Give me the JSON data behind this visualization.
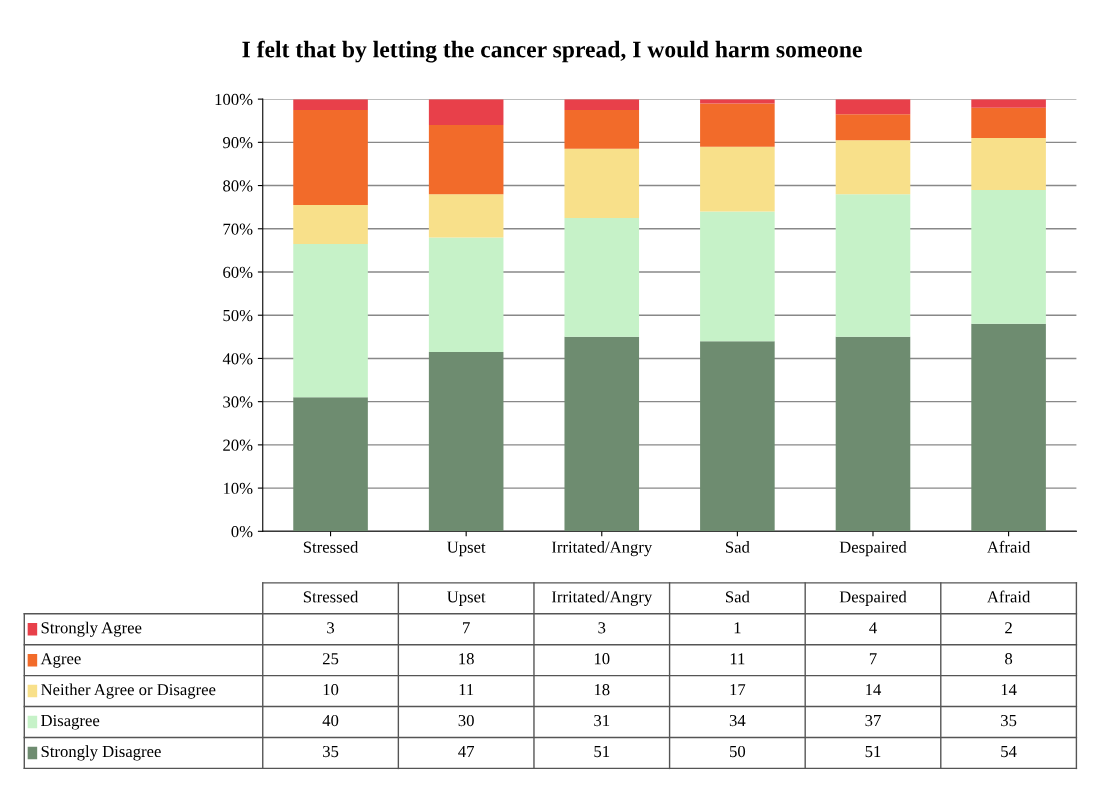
{
  "chart_data": [
    {
      "type": "bar",
      "title": "I felt that by letting the cancer spread, I would harm someone",
      "categories": [
        "Stressed",
        "Upset",
        "Irritated/Angry",
        "Sad",
        "Despaired",
        "Afraid"
      ],
      "stacked": true,
      "ylim": [
        0,
        100
      ],
      "yticks": [
        {
          "value": 0,
          "label": "0%"
        },
        {
          "value": 10,
          "label": "10%"
        },
        {
          "value": 20,
          "label": "20%"
        },
        {
          "value": 30,
          "label": "30%"
        },
        {
          "value": 40,
          "label": "40%"
        },
        {
          "value": 50,
          "label": "50%"
        },
        {
          "value": 60,
          "label": "60%"
        },
        {
          "value": 70,
          "label": "70%"
        },
        {
          "value": 80,
          "label": "80%"
        },
        {
          "value": 90,
          "label": "90%"
        },
        {
          "value": 100,
          "label": "100%"
        }
      ],
      "grid": "y",
      "series": [
        {
          "color": "#6e8c70",
          "values": [
            31,
            41.5,
            45,
            44,
            45,
            48
          ]
        },
        {
          "color": "#c6f2c8",
          "values": [
            35.5,
            26.5,
            27.5,
            30,
            33,
            31
          ]
        },
        {
          "color": "#f8e08a",
          "values": [
            9,
            10,
            16,
            15,
            12.5,
            12
          ]
        },
        {
          "color": "#f26b2a",
          "values": [
            22,
            16,
            9,
            10,
            6,
            7
          ]
        },
        {
          "color": "#e8404a",
          "values": [
            2.5,
            6,
            2.5,
            1,
            3.5,
            2
          ]
        }
      ]
    },
    {
      "type": "other",
      "categories": [
        "Stressed",
        "Upset",
        "Irritated/Angry",
        "Sad",
        "Despaired",
        "Afraid"
      ],
      "legend": "left",
      "data_labels": true,
      "series": [
        {
          "name": "Strongly Agree",
          "color": "#e8404a",
          "values": [
            3,
            7,
            3,
            1,
            4,
            2
          ]
        },
        {
          "name": "Agree",
          "color": "#f26b2a",
          "values": [
            25,
            18,
            10,
            11,
            7,
            8
          ]
        },
        {
          "name": "Neither Agree or Disagree",
          "color": "#f8e08a",
          "values": [
            10,
            11,
            18,
            17,
            14,
            14
          ]
        },
        {
          "name": "Disagree",
          "color": "#c6f2c8",
          "values": [
            40,
            30,
            31,
            34,
            37,
            35
          ]
        },
        {
          "name": "Strongly Disagree",
          "color": "#6e8c70",
          "values": [
            35,
            47,
            51,
            50,
            51,
            54
          ]
        }
      ]
    }
  ]
}
